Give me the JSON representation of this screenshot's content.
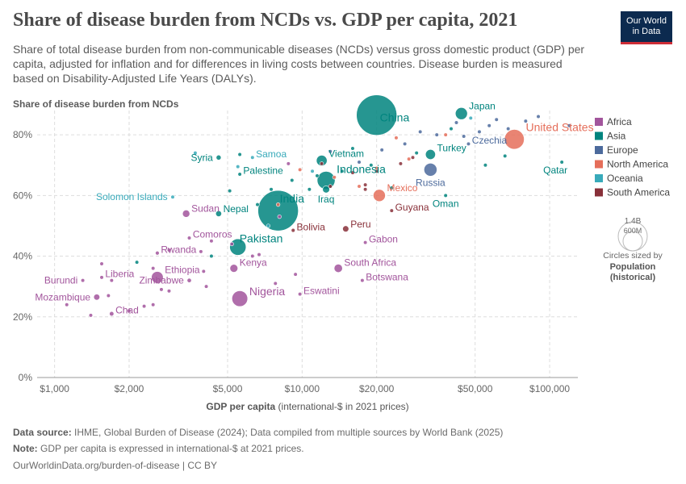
{
  "header": {
    "title": "Share of disease burden from NCDs vs. GDP per capita, 2021",
    "subtitle": "Share of total disease burden from non-communicable diseases (NCDs) versus gross domestic product (GDP) per capita, adjusted for inflation and for differences in living costs between countries. Disease burden is measured based on Disability-Adjusted Life Years (DALYs).",
    "logo_line1": "Our World",
    "logo_line2": "in Data"
  },
  "footer": {
    "source_label": "Data source:",
    "source_text": "IHME, Global Burden of Disease (2024); Data compiled from multiple sources by World Bank (2025)",
    "note_label": "Note:",
    "note_text": "GDP per capita is expressed in international-$ at 2021 prices.",
    "url": "OurWorldinData.org/burden-of-disease | CC BY"
  },
  "colors": {
    "Africa": "#a2559c",
    "Asia": "#00847e",
    "Europe": "#4c6a9c",
    "North America": "#e56e5a",
    "Oceania": "#38aaba",
    "South America": "#883039"
  },
  "chart_data": {
    "type": "scatter",
    "title": "Share of disease burden from NCDs",
    "xlabel": "GDP per capita",
    "xlabel_suffix": "(international-$ in 2021 prices)",
    "ylabel": "Share of disease burden from NCDs",
    "x_scale": "log",
    "xlim": [
      850,
      130000
    ],
    "ylim": [
      0,
      88
    ],
    "x_ticks": [
      1000,
      2000,
      5000,
      10000,
      20000,
      50000,
      100000
    ],
    "x_tick_labels": [
      "$1,000",
      "$2,000",
      "$5,000",
      "$10,000",
      "$20,000",
      "$50,000",
      "$100,000"
    ],
    "y_ticks": [
      0,
      20,
      40,
      60,
      80
    ],
    "y_tick_labels": [
      "0%",
      "20%",
      "40%",
      "60%",
      "80%"
    ],
    "legend": [
      "Africa",
      "Asia",
      "Europe",
      "North America",
      "Oceania",
      "South America"
    ],
    "size_legend": {
      "label_big": "1.4B",
      "label_small": "600M",
      "caption1": "Circles sized by",
      "caption2": "Population",
      "caption3": "(historical)"
    },
    "labeled_points": [
      {
        "name": "China",
        "x": 20000,
        "y": 86.5,
        "pop": 1400,
        "region": "Asia"
      },
      {
        "name": "India",
        "x": 8000,
        "y": 55,
        "pop": 1400,
        "region": "Asia"
      },
      {
        "name": "Japan",
        "x": 44000,
        "y": 87,
        "pop": 125,
        "region": "Asia"
      },
      {
        "name": "United States",
        "x": 72000,
        "y": 78.5,
        "pop": 335,
        "region": "North America"
      },
      {
        "name": "Czechia",
        "x": 47000,
        "y": 77,
        "pop": 10,
        "region": "Europe"
      },
      {
        "name": "Qatar",
        "x": 112000,
        "y": 71,
        "pop": 3,
        "region": "Asia"
      },
      {
        "name": "Turkey",
        "x": 33000,
        "y": 73.5,
        "pop": 85,
        "region": "Asia"
      },
      {
        "name": "Russia",
        "x": 33000,
        "y": 68.5,
        "pop": 144,
        "region": "Europe"
      },
      {
        "name": "Oman",
        "x": 38000,
        "y": 60,
        "pop": 5,
        "region": "Asia"
      },
      {
        "name": "Vietnam",
        "x": 12000,
        "y": 71.5,
        "pop": 98,
        "region": "Asia"
      },
      {
        "name": "Indonesia",
        "x": 12500,
        "y": 65,
        "pop": 275,
        "region": "Asia"
      },
      {
        "name": "Iraq",
        "x": 12500,
        "y": 62,
        "pop": 43,
        "region": "Asia"
      },
      {
        "name": "Mexico",
        "x": 20500,
        "y": 60,
        "pop": 126,
        "region": "North America"
      },
      {
        "name": "Guyana",
        "x": 23000,
        "y": 55,
        "pop": 1,
        "region": "South America"
      },
      {
        "name": "Peru",
        "x": 15000,
        "y": 49,
        "pop": 33,
        "region": "South America"
      },
      {
        "name": "Bolivia",
        "x": 9200,
        "y": 48.5,
        "pop": 12,
        "region": "South America"
      },
      {
        "name": "Gabon",
        "x": 18000,
        "y": 44.5,
        "pop": 2,
        "region": "Africa"
      },
      {
        "name": "South Africa",
        "x": 14000,
        "y": 36,
        "pop": 60,
        "region": "Africa"
      },
      {
        "name": "Botswana",
        "x": 17500,
        "y": 32,
        "pop": 3,
        "region": "Africa"
      },
      {
        "name": "Eswatini",
        "x": 9800,
        "y": 27.5,
        "pop": 1,
        "region": "Africa"
      },
      {
        "name": "Syria",
        "x": 4600,
        "y": 72.5,
        "pop": 21,
        "region": "Asia"
      },
      {
        "name": "Samoa",
        "x": 6300,
        "y": 72.5,
        "pop": 0.2,
        "region": "Oceania"
      },
      {
        "name": "Palestine",
        "x": 5600,
        "y": 67,
        "pop": 5,
        "region": "Asia"
      },
      {
        "name": "Solomon Islands",
        "x": 3000,
        "y": 59.5,
        "pop": 0.7,
        "region": "Oceania"
      },
      {
        "name": "Sudan",
        "x": 3400,
        "y": 54,
        "pop": 46,
        "region": "Africa"
      },
      {
        "name": "Nepal",
        "x": 4600,
        "y": 54,
        "pop": 30,
        "region": "Asia"
      },
      {
        "name": "Pakistan",
        "x": 5500,
        "y": 43,
        "pop": 230,
        "region": "Asia"
      },
      {
        "name": "Kenya",
        "x": 5300,
        "y": 36,
        "pop": 54,
        "region": "Africa"
      },
      {
        "name": "Nigeria",
        "x": 5600,
        "y": 26,
        "pop": 213,
        "region": "Africa"
      },
      {
        "name": "Comoros",
        "x": 3500,
        "y": 46,
        "pop": 0.8,
        "region": "Africa"
      },
      {
        "name": "Rwanda",
        "x": 2600,
        "y": 41,
        "pop": 13,
        "region": "Africa"
      },
      {
        "name": "Ethiopia",
        "x": 2600,
        "y": 33,
        "pop": 120,
        "region": "Africa"
      },
      {
        "name": "Zimbabwe",
        "x": 3500,
        "y": 32,
        "pop": 16,
        "region": "Africa"
      },
      {
        "name": "Liberia",
        "x": 1550,
        "y": 33,
        "pop": 5,
        "region": "Africa"
      },
      {
        "name": "Burundi",
        "x": 1300,
        "y": 32,
        "pop": 12,
        "region": "Africa"
      },
      {
        "name": "Mozambique",
        "x": 1480,
        "y": 26.5,
        "pop": 32,
        "region": "Africa"
      },
      {
        "name": "Chad",
        "x": 1700,
        "y": 21,
        "pop": 17,
        "region": "Africa"
      }
    ],
    "other_points": [
      {
        "x": 1120,
        "y": 24,
        "region": "Africa"
      },
      {
        "x": 1400,
        "y": 20.5,
        "region": "Africa"
      },
      {
        "x": 1650,
        "y": 27,
        "region": "Africa"
      },
      {
        "x": 1550,
        "y": 37.5,
        "region": "Africa"
      },
      {
        "x": 1700,
        "y": 32,
        "region": "Africa"
      },
      {
        "x": 2000,
        "y": 22,
        "region": "Africa"
      },
      {
        "x": 2300,
        "y": 23.5,
        "region": "Africa"
      },
      {
        "x": 2500,
        "y": 24,
        "region": "Africa"
      },
      {
        "x": 2700,
        "y": 29,
        "region": "Africa"
      },
      {
        "x": 2900,
        "y": 28.5,
        "region": "Africa"
      },
      {
        "x": 2500,
        "y": 36,
        "region": "Africa"
      },
      {
        "x": 2900,
        "y": 42,
        "region": "Africa"
      },
      {
        "x": 3900,
        "y": 41.5,
        "region": "Africa"
      },
      {
        "x": 4300,
        "y": 45,
        "region": "Africa"
      },
      {
        "x": 4100,
        "y": 30,
        "region": "Africa"
      },
      {
        "x": 6300,
        "y": 40,
        "region": "Africa"
      },
      {
        "x": 6700,
        "y": 40.5,
        "region": "Africa"
      },
      {
        "x": 7800,
        "y": 31,
        "region": "Africa"
      },
      {
        "x": 9400,
        "y": 34,
        "region": "Africa"
      },
      {
        "x": 4000,
        "y": 35,
        "region": "Africa"
      },
      {
        "x": 5200,
        "y": 44,
        "region": "Africa"
      },
      {
        "x": 8800,
        "y": 70.5,
        "region": "Africa"
      },
      {
        "x": 8100,
        "y": 53,
        "region": "Africa"
      },
      {
        "x": 2150,
        "y": 38,
        "region": "Asia"
      },
      {
        "x": 5100,
        "y": 61.5,
        "region": "Asia"
      },
      {
        "x": 6600,
        "y": 57,
        "region": "Asia"
      },
      {
        "x": 7500,
        "y": 62,
        "region": "Asia"
      },
      {
        "x": 9100,
        "y": 65,
        "region": "Asia"
      },
      {
        "x": 11500,
        "y": 66.5,
        "region": "Asia"
      },
      {
        "x": 14500,
        "y": 68,
        "region": "Asia"
      },
      {
        "x": 19000,
        "y": 70,
        "region": "Asia"
      },
      {
        "x": 23000,
        "y": 62.5,
        "region": "Asia"
      },
      {
        "x": 29000,
        "y": 74,
        "region": "Asia"
      },
      {
        "x": 40000,
        "y": 82,
        "region": "Asia"
      },
      {
        "x": 55000,
        "y": 70,
        "region": "Asia"
      },
      {
        "x": 66000,
        "y": 73,
        "region": "Asia"
      },
      {
        "x": 5600,
        "y": 73.5,
        "region": "Asia"
      },
      {
        "x": 10700,
        "y": 62,
        "region": "Asia"
      },
      {
        "x": 16000,
        "y": 75.5,
        "region": "Asia"
      },
      {
        "x": 4300,
        "y": 40,
        "region": "Asia"
      },
      {
        "x": 13000,
        "y": 74.5,
        "region": "Europe"
      },
      {
        "x": 17000,
        "y": 71,
        "region": "Europe"
      },
      {
        "x": 21000,
        "y": 75,
        "region": "Europe"
      },
      {
        "x": 26000,
        "y": 77,
        "region": "Europe"
      },
      {
        "x": 30000,
        "y": 81,
        "region": "Europe"
      },
      {
        "x": 35000,
        "y": 80,
        "region": "Europe"
      },
      {
        "x": 42000,
        "y": 84,
        "region": "Europe"
      },
      {
        "x": 52000,
        "y": 81,
        "region": "Europe"
      },
      {
        "x": 57000,
        "y": 83,
        "region": "Europe"
      },
      {
        "x": 61000,
        "y": 85,
        "region": "Europe"
      },
      {
        "x": 68000,
        "y": 82,
        "region": "Europe"
      },
      {
        "x": 80000,
        "y": 84.5,
        "region": "Europe"
      },
      {
        "x": 90000,
        "y": 86,
        "region": "Europe"
      },
      {
        "x": 120000,
        "y": 83,
        "region": "Europe"
      },
      {
        "x": 45000,
        "y": 79.5,
        "region": "Europe"
      },
      {
        "x": 9800,
        "y": 68.5,
        "region": "North America"
      },
      {
        "x": 13500,
        "y": 66,
        "region": "North America"
      },
      {
        "x": 17000,
        "y": 63,
        "region": "North America"
      },
      {
        "x": 20000,
        "y": 69,
        "region": "North America"
      },
      {
        "x": 27000,
        "y": 72,
        "region": "North America"
      },
      {
        "x": 8000,
        "y": 57,
        "region": "North America"
      },
      {
        "x": 38000,
        "y": 80,
        "region": "North America"
      },
      {
        "x": 24000,
        "y": 79,
        "region": "North America"
      },
      {
        "x": 3700,
        "y": 74,
        "region": "Oceania"
      },
      {
        "x": 7300,
        "y": 50,
        "region": "Oceania"
      },
      {
        "x": 5500,
        "y": 69.5,
        "region": "Oceania"
      },
      {
        "x": 48000,
        "y": 85.5,
        "region": "Oceania"
      },
      {
        "x": 11000,
        "y": 68,
        "region": "Oceania"
      },
      {
        "x": 12000,
        "y": 70.5,
        "region": "South America"
      },
      {
        "x": 16000,
        "y": 67.5,
        "region": "South America"
      },
      {
        "x": 18000,
        "y": 62,
        "region": "South America"
      },
      {
        "x": 20000,
        "y": 68,
        "region": "South America"
      },
      {
        "x": 25000,
        "y": 70.5,
        "region": "South America"
      },
      {
        "x": 28000,
        "y": 72.5,
        "region": "South America"
      },
      {
        "x": 18000,
        "y": 63.5,
        "region": "South America"
      },
      {
        "x": 13000,
        "y": 63,
        "region": "South America"
      }
    ]
  }
}
